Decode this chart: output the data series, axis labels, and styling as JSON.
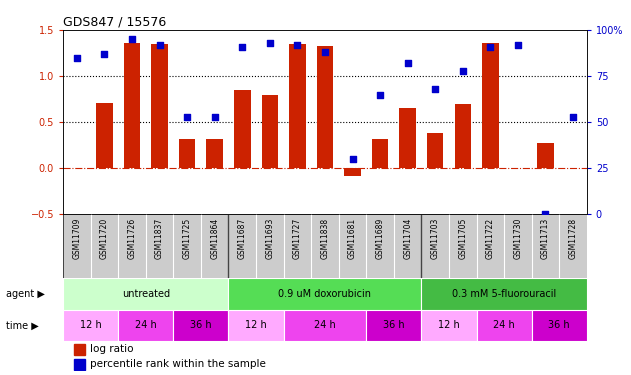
{
  "title": "GDS847 / 15576",
  "samples": [
    "GSM11709",
    "GSM11720",
    "GSM11726",
    "GSM11837",
    "GSM11725",
    "GSM11864",
    "GSM11687",
    "GSM11693",
    "GSM11727",
    "GSM11838",
    "GSM11681",
    "GSM11689",
    "GSM11704",
    "GSM11703",
    "GSM11705",
    "GSM11722",
    "GSM11730",
    "GSM11713",
    "GSM11728"
  ],
  "log_ratio": [
    0.0,
    0.71,
    1.36,
    1.35,
    0.32,
    0.32,
    0.85,
    0.79,
    1.35,
    1.33,
    -0.08,
    0.32,
    0.65,
    0.38,
    0.7,
    1.36,
    0.0,
    0.27,
    0.0
  ],
  "percentile": [
    85,
    87,
    95,
    92,
    53,
    53,
    91,
    93,
    92,
    88,
    30,
    65,
    82,
    68,
    78,
    91,
    92,
    0,
    53
  ],
  "bar_color": "#cc2200",
  "dot_color": "#0000cc",
  "ylim_left": [
    -0.5,
    1.5
  ],
  "ylim_right": [
    0,
    100
  ],
  "yticks_left": [
    -0.5,
    0.0,
    0.5,
    1.0,
    1.5
  ],
  "yticks_right": [
    0,
    25,
    50,
    75,
    100
  ],
  "hline_values": [
    0.0,
    0.5,
    1.0
  ],
  "hline_styles": [
    "dashdot",
    "dotted",
    "dotted"
  ],
  "hline_colors": [
    "#cc2200",
    "#000000",
    "#000000"
  ],
  "agent_groups": [
    {
      "label": "untreated",
      "start": 0,
      "end": 5,
      "color": "#ccffcc"
    },
    {
      "label": "0.9 uM doxorubicin",
      "start": 6,
      "end": 12,
      "color": "#55dd55"
    },
    {
      "label": "0.3 mM 5-fluorouracil",
      "start": 13,
      "end": 18,
      "color": "#44bb44"
    }
  ],
  "time_groups": [
    {
      "label": "12 h",
      "start": 0,
      "end": 1,
      "color": "#ffaaff"
    },
    {
      "label": "24 h",
      "start": 2,
      "end": 3,
      "color": "#ee44ee"
    },
    {
      "label": "36 h",
      "start": 4,
      "end": 5,
      "color": "#cc00cc"
    },
    {
      "label": "12 h",
      "start": 6,
      "end": 7,
      "color": "#ffaaff"
    },
    {
      "label": "24 h",
      "start": 8,
      "end": 10,
      "color": "#ee44ee"
    },
    {
      "label": "36 h",
      "start": 11,
      "end": 12,
      "color": "#cc00cc"
    },
    {
      "label": "12 h",
      "start": 13,
      "end": 14,
      "color": "#ffaaff"
    },
    {
      "label": "24 h",
      "start": 15,
      "end": 16,
      "color": "#ee44ee"
    },
    {
      "label": "36 h",
      "start": 17,
      "end": 18,
      "color": "#cc00cc"
    }
  ],
  "legend_items": [
    {
      "label": "log ratio",
      "color": "#cc2200"
    },
    {
      "label": "percentile rank within the sample",
      "color": "#0000cc"
    }
  ],
  "left_tick_color": "#cc2200",
  "right_axis_color": "#0000cc",
  "background_color": "#ffffff",
  "tick_bg_color": "#cccccc",
  "ytick_right_labels": [
    "0",
    "25",
    "50",
    "75",
    "100%"
  ]
}
